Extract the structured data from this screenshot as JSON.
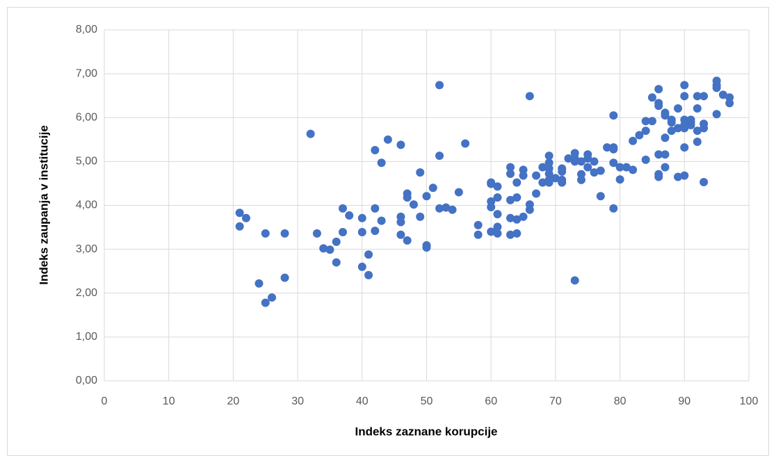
{
  "chart_data": {
    "type": "scatter",
    "x_label": "Indeks zaznane  korupcije",
    "y_label": "Indeks zaupanja  v institucije",
    "color": "#4472c4",
    "grid": true,
    "xlim": [
      0,
      100
    ],
    "xticks": [
      0,
      10,
      20,
      30,
      40,
      50,
      60,
      70,
      80,
      90,
      100
    ],
    "ylim": [
      0,
      8
    ],
    "yticks": [
      {
        "value": 0,
        "label": "0,00"
      },
      {
        "value": 1,
        "label": "1,00"
      },
      {
        "value": 2,
        "label": "2,00"
      },
      {
        "value": 3,
        "label": "3,00"
      },
      {
        "value": 4,
        "label": "4,00"
      },
      {
        "value": 5,
        "label": "5,00"
      },
      {
        "value": 6,
        "label": "6,00"
      },
      {
        "value": 7,
        "label": "7,00"
      },
      {
        "value": 8,
        "label": "8,00"
      }
    ],
    "x": [
      21,
      21,
      22,
      24,
      25,
      25,
      26,
      28,
      28,
      32,
      33,
      34,
      35,
      36,
      36,
      37,
      37,
      38,
      40,
      40,
      40,
      41,
      41,
      42,
      42,
      42,
      43,
      43,
      44,
      46,
      46,
      46,
      46,
      47,
      47,
      47,
      48,
      49,
      49,
      50,
      50,
      50,
      51,
      52,
      52,
      52,
      53,
      54,
      55,
      56,
      58,
      58,
      60,
      60,
      60,
      60,
      60,
      61,
      61,
      61,
      61,
      61,
      63,
      63,
      63,
      63,
      63,
      64,
      64,
      64,
      64,
      65,
      65,
      65,
      66,
      66,
      66,
      67,
      67,
      68,
      68,
      69,
      69,
      69,
      69,
      69,
      69,
      70,
      71,
      71,
      71,
      71,
      72,
      73,
      73,
      73,
      73,
      74,
      74,
      74,
      75,
      75,
      75,
      76,
      76,
      77,
      77,
      78,
      79,
      79,
      79,
      79,
      79,
      80,
      80,
      81,
      82,
      82,
      83,
      84,
      84,
      84,
      85,
      85,
      86,
      86,
      86,
      86,
      86,
      86,
      87,
      87,
      87,
      87,
      87,
      88,
      88,
      88,
      89,
      89,
      89,
      90,
      90,
      90,
      90,
      90,
      90,
      90,
      91,
      91,
      91,
      92,
      92,
      92,
      92,
      93,
      93,
      93,
      93,
      95,
      95,
      95,
      95,
      96,
      97,
      97
    ],
    "values": [
      3.83,
      3.52,
      3.71,
      2.22,
      3.36,
      1.78,
      1.9,
      3.36,
      2.35,
      5.63,
      3.36,
      3.02,
      2.99,
      3.17,
      2.7,
      3.93,
      3.39,
      3.77,
      3.71,
      3.39,
      2.6,
      2.88,
      2.41,
      5.26,
      3.93,
      3.42,
      4.97,
      3.65,
      5.5,
      5.38,
      3.74,
      3.62,
      3.33,
      4.27,
      4.18,
      3.2,
      4.02,
      4.75,
      3.74,
      4.21,
      3.09,
      3.04,
      4.4,
      6.74,
      5.13,
      3.93,
      3.95,
      3.9,
      4.3,
      5.41,
      3.55,
      3.33,
      4.52,
      4.49,
      4.09,
      3.96,
      3.4,
      4.43,
      4.18,
      3.8,
      3.51,
      3.36,
      4.87,
      4.72,
      4.12,
      3.71,
      3.33,
      4.52,
      4.18,
      3.68,
      3.36,
      4.81,
      4.68,
      3.74,
      6.49,
      4.02,
      3.9,
      4.68,
      4.27,
      4.87,
      4.52,
      5.13,
      4.97,
      4.84,
      4.72,
      4.58,
      4.52,
      4.62,
      4.84,
      4.77,
      4.58,
      4.52,
      5.07,
      5.19,
      5.07,
      5.0,
      2.29,
      5.0,
      4.71,
      4.58,
      5.16,
      5.07,
      4.87,
      5.0,
      4.75,
      4.79,
      4.21,
      5.32,
      6.05,
      5.32,
      5.28,
      4.97,
      3.93,
      4.87,
      4.59,
      4.87,
      5.47,
      4.81,
      5.6,
      5.92,
      5.7,
      5.04,
      6.46,
      5.92,
      6.65,
      6.33,
      6.27,
      5.16,
      4.71,
      4.65,
      6.11,
      6.05,
      5.54,
      5.16,
      4.87,
      5.95,
      5.89,
      5.7,
      6.21,
      5.76,
      4.65,
      6.74,
      6.49,
      5.95,
      5.83,
      5.76,
      5.32,
      4.68,
      5.95,
      5.89,
      5.83,
      6.49,
      6.21,
      5.7,
      5.45,
      6.49,
      5.86,
      5.76,
      4.53,
      6.84,
      6.74,
      6.68,
      6.08,
      6.52,
      6.46,
      6.33
    ]
  }
}
